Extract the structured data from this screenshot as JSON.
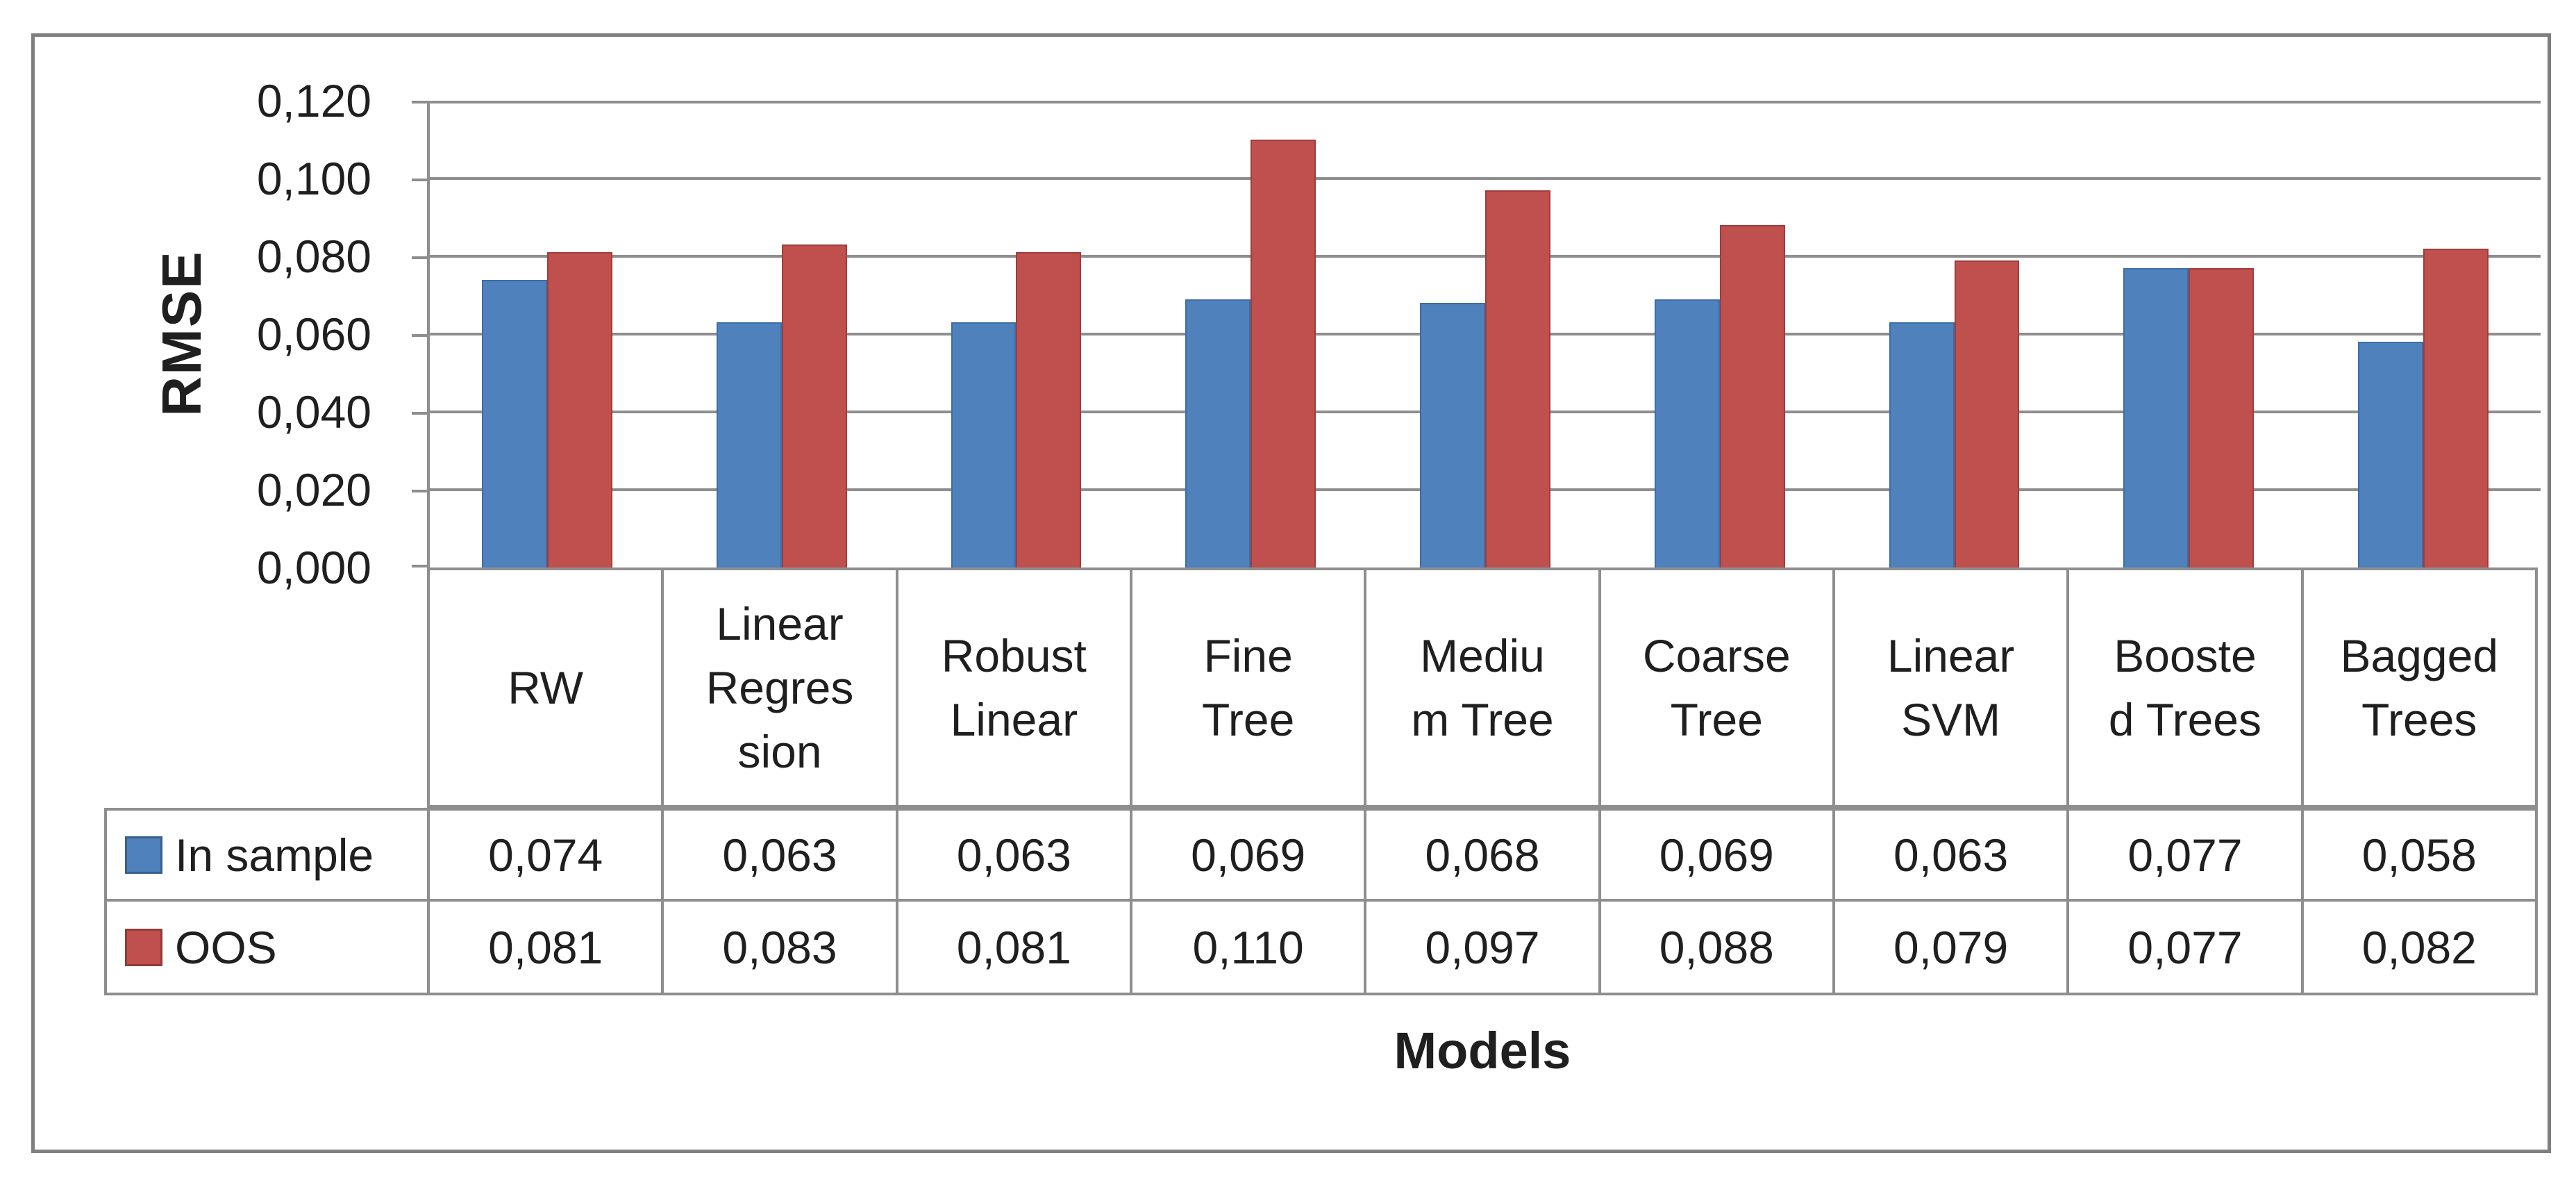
{
  "figure": {
    "background": "#ffffff",
    "border_color": "#7f7f7f"
  },
  "axis": {
    "y_title": "RMSE",
    "x_title": "Models",
    "y_ticks": [
      "0,120",
      "0,100",
      "0,080",
      "0,060",
      "0,040",
      "0,020",
      "0,000"
    ]
  },
  "chart_data": {
    "type": "bar",
    "title": "",
    "xlabel": "Models",
    "ylabel": "RMSE",
    "ylim": [
      0,
      0.12
    ],
    "ytick_step": 0.02,
    "grid": true,
    "decimal_separator": ",",
    "legend_position": "table-left",
    "categories": [
      "RW",
      "Linear Regression",
      "Robust Linear",
      "Fine Tree",
      "Medium Tree",
      "Coarse Tree",
      "Linear SVM",
      "Boosted Trees",
      "Bagged Trees"
    ],
    "series": [
      {
        "name": "In sample",
        "color": "#4f81bd",
        "values": [
          0.074,
          0.063,
          0.063,
          0.069,
          0.068,
          0.069,
          0.063,
          0.077,
          0.058
        ]
      },
      {
        "name": "OOS",
        "color": "#c0504d",
        "values": [
          0.081,
          0.083,
          0.081,
          0.11,
          0.097,
          0.088,
          0.079,
          0.077,
          0.082
        ]
      }
    ]
  },
  "table": {
    "header_display": [
      "RW",
      "Linear\nRegres\nsion",
      "Robust\nLinear",
      "Fine\nTree",
      "Mediu\nm Tree",
      "Coarse\nTree",
      "Linear\nSVM",
      "Booste\nd Trees",
      "Bagged\nTrees"
    ],
    "rows": [
      {
        "label": "In sample",
        "key_color": "#4f81bd",
        "values": [
          "0,074",
          "0,063",
          "0,063",
          "0,069",
          "0,068",
          "0,069",
          "0,063",
          "0,077",
          "0,058"
        ]
      },
      {
        "label": "OOS",
        "key_color": "#c0504d",
        "values": [
          "0,081",
          "0,083",
          "0,081",
          "0,110",
          "0,097",
          "0,088",
          "0,079",
          "0,077",
          "0,082"
        ]
      }
    ]
  },
  "colors": {
    "grid": "#8e8e8e",
    "text": "#1f1f1f",
    "in_sample": "#4f81bd",
    "oos": "#c0504d"
  }
}
